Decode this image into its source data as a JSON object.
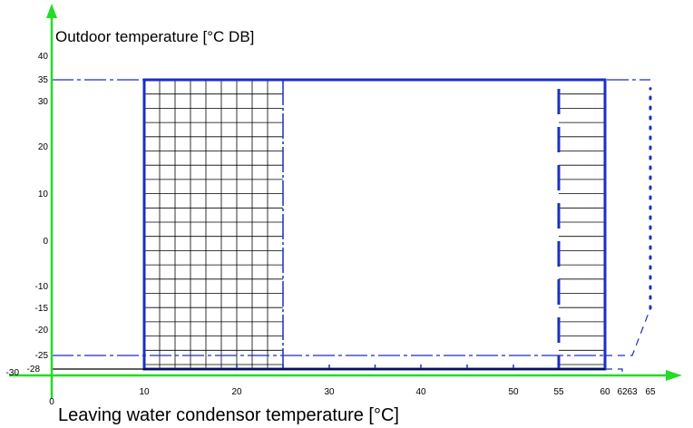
{
  "chart_data": {
    "type": "area",
    "title": "",
    "xlabel": "Leaving water condensor temperature [°C]",
    "ylabel": "Outdoor temperature [°C DB]",
    "x_origin_label": "0",
    "x_ticks": [
      10,
      20,
      30,
      40,
      50,
      55,
      60,
      62,
      63,
      65
    ],
    "x_tick_labels": [
      "10",
      "20",
      "30",
      "40",
      "50",
      "55",
      "60",
      "62",
      "63",
      "65"
    ],
    "y_ticks": [
      40,
      35,
      30,
      20,
      10,
      0,
      -10,
      -15,
      -20,
      -25,
      -28,
      -30
    ],
    "y_tick_labels": [
      "40",
      "35",
      "30",
      "20",
      "10",
      "0",
      "-10",
      "-15",
      "-20",
      "-25",
      "-28",
      "-30"
    ],
    "operating_range": {
      "x": [
        10,
        60
      ],
      "y": [
        -28,
        35
      ]
    },
    "regions": [
      {
        "pattern": "grid",
        "x": [
          10,
          25
        ],
        "y": [
          -28,
          35
        ]
      },
      {
        "pattern": "horizontal-lines",
        "x": [
          55,
          60
        ],
        "y": [
          -28,
          35
        ]
      }
    ],
    "boundary_lines": [
      {
        "style": "dash-dot",
        "points": [
          [
            0,
            35
          ],
          [
            65,
            35
          ]
        ]
      },
      {
        "style": "dash-dot",
        "points": [
          [
            0,
            -25
          ],
          [
            60,
            -25
          ]
        ]
      },
      {
        "style": "solid",
        "points": [
          [
            0,
            -28
          ],
          [
            60,
            -28
          ]
        ]
      },
      {
        "style": "dashed",
        "points": [
          [
            60,
            -25
          ],
          [
            63,
            -25
          ],
          [
            65,
            -15
          ]
        ]
      },
      {
        "style": "dotted",
        "points": [
          [
            65,
            -15
          ],
          [
            65,
            33
          ]
        ]
      },
      {
        "style": "dashed",
        "points": [
          [
            60,
            -28
          ],
          [
            62,
            -28
          ],
          [
            62,
            -30
          ]
        ]
      }
    ],
    "colors": {
      "axes": "#22dd22",
      "boundary": "#1a2fc4",
      "grid": "#000000",
      "text": "#000000"
    }
  }
}
